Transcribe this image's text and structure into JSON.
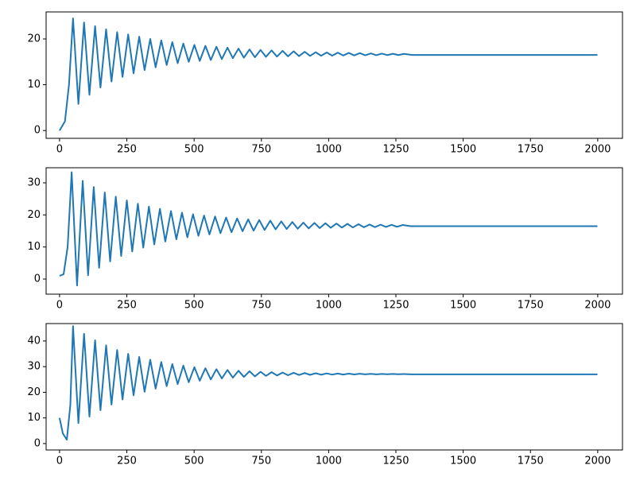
{
  "chart_data": [
    {
      "type": "line",
      "color": "#1f77b4",
      "xlim": [
        -50,
        2092
      ],
      "ylim": [
        -1.7,
        25.9
      ],
      "xticks": [
        0,
        250,
        500,
        750,
        1000,
        1250,
        1500,
        1750,
        2000
      ],
      "yticks": [
        0,
        10,
        20
      ],
      "x": [
        0,
        20,
        35,
        50,
        70,
        91,
        111,
        132,
        152,
        173,
        193,
        214,
        234,
        255,
        275,
        296,
        316,
        337,
        357,
        378,
        398,
        419,
        439,
        460,
        480,
        501,
        521,
        542,
        562,
        583,
        603,
        624,
        644,
        665,
        685,
        706,
        726,
        747,
        767,
        788,
        808,
        829,
        849,
        870,
        890,
        911,
        931,
        952,
        972,
        993,
        1013,
        1034,
        1054,
        1075,
        1095,
        1116,
        1136,
        1157,
        1177,
        1198,
        1218,
        1239,
        1259,
        1280,
        1310,
        1999
      ],
      "values": [
        0,
        2,
        10,
        24.5,
        5.8,
        23.6,
        7.8,
        22.8,
        9.4,
        22.1,
        10.7,
        21.5,
        11.7,
        21.0,
        12.5,
        20.5,
        13.2,
        20.0,
        13.8,
        19.7,
        14.3,
        19.3,
        14.7,
        19.0,
        15.0,
        18.7,
        15.2,
        18.5,
        15.4,
        18.3,
        15.6,
        18.1,
        15.8,
        17.9,
        15.9,
        17.7,
        16.0,
        17.6,
        16.1,
        17.5,
        16.15,
        17.4,
        16.2,
        17.3,
        16.25,
        17.2,
        16.3,
        17.1,
        16.33,
        17.05,
        16.36,
        17.0,
        16.39,
        16.95,
        16.41,
        16.9,
        16.43,
        16.85,
        16.45,
        16.8,
        16.47,
        16.77,
        16.48,
        16.74,
        16.5,
        16.5
      ]
    },
    {
      "type": "line",
      "color": "#1f77b4",
      "xlim": [
        -50,
        2092
      ],
      "ylim": [
        -4.7,
        34.7
      ],
      "xticks": [
        0,
        250,
        500,
        750,
        1000,
        1250,
        1500,
        1750,
        2000
      ],
      "yticks": [
        0,
        10,
        20,
        30
      ],
      "x": [
        0,
        15,
        30,
        45,
        65,
        86,
        106,
        127,
        147,
        168,
        188,
        209,
        229,
        250,
        270,
        291,
        311,
        332,
        352,
        373,
        393,
        414,
        434,
        455,
        475,
        496,
        516,
        537,
        557,
        578,
        598,
        619,
        639,
        660,
        680,
        701,
        721,
        742,
        762,
        783,
        803,
        824,
        844,
        865,
        885,
        906,
        926,
        947,
        967,
        988,
        1008,
        1029,
        1049,
        1070,
        1090,
        1111,
        1131,
        1152,
        1172,
        1193,
        1213,
        1234,
        1254,
        1275,
        1305,
        1999
      ],
      "values": [
        1,
        1.5,
        10,
        33.3,
        -2.0,
        30.6,
        1.2,
        28.7,
        3.5,
        27.0,
        5.5,
        25.7,
        7.2,
        24.5,
        8.6,
        23.5,
        9.8,
        22.6,
        10.8,
        21.9,
        11.7,
        21.2,
        12.4,
        20.7,
        13.0,
        20.2,
        13.5,
        19.8,
        13.9,
        19.5,
        14.3,
        19.2,
        14.6,
        18.9,
        14.9,
        18.6,
        15.1,
        18.4,
        15.3,
        18.2,
        15.5,
        18.0,
        15.6,
        17.8,
        15.7,
        17.6,
        15.8,
        17.5,
        15.9,
        17.4,
        16.0,
        17.3,
        16.05,
        17.2,
        16.1,
        17.1,
        16.15,
        17.0,
        16.2,
        16.95,
        16.25,
        16.9,
        16.3,
        16.85,
        16.5,
        16.5
      ]
    },
    {
      "type": "line",
      "color": "#1f77b4",
      "xlim": [
        -50,
        2092
      ],
      "ylim": [
        -2.5,
        46.8
      ],
      "xticks": [
        0,
        250,
        500,
        750,
        1000,
        1250,
        1500,
        1750,
        2000
      ],
      "yticks": [
        0,
        10,
        20,
        30,
        40
      ],
      "x": [
        0,
        12,
        27,
        40,
        50,
        70,
        91,
        111,
        132,
        152,
        173,
        193,
        214,
        234,
        255,
        275,
        296,
        316,
        337,
        357,
        378,
        398,
        419,
        439,
        460,
        480,
        501,
        521,
        542,
        562,
        583,
        603,
        624,
        644,
        665,
        685,
        706,
        726,
        747,
        767,
        788,
        808,
        829,
        849,
        870,
        890,
        911,
        931,
        952,
        972,
        993,
        1013,
        1034,
        1054,
        1075,
        1095,
        1116,
        1136,
        1157,
        1177,
        1198,
        1218,
        1239,
        1259,
        1280,
        1310,
        1999
      ],
      "values": [
        10,
        4,
        1.5,
        15,
        45.8,
        8.0,
        42.8,
        10.5,
        40.3,
        13.0,
        38.3,
        15.2,
        36.5,
        17.2,
        35.0,
        18.8,
        33.8,
        20.2,
        32.7,
        21.4,
        31.8,
        22.4,
        31.0,
        23.2,
        30.4,
        23.9,
        29.8,
        24.5,
        29.4,
        25.0,
        29.0,
        25.4,
        28.7,
        25.7,
        28.4,
        26.0,
        28.2,
        26.2,
        28.0,
        26.4,
        27.85,
        26.55,
        27.7,
        26.65,
        27.6,
        26.75,
        27.5,
        26.8,
        27.42,
        26.85,
        27.36,
        26.9,
        27.3,
        26.93,
        27.26,
        26.96,
        27.22,
        26.98,
        27.19,
        27.0,
        27.16,
        27.02,
        27.14,
        27.03,
        27.12,
        27,
        27
      ]
    }
  ]
}
